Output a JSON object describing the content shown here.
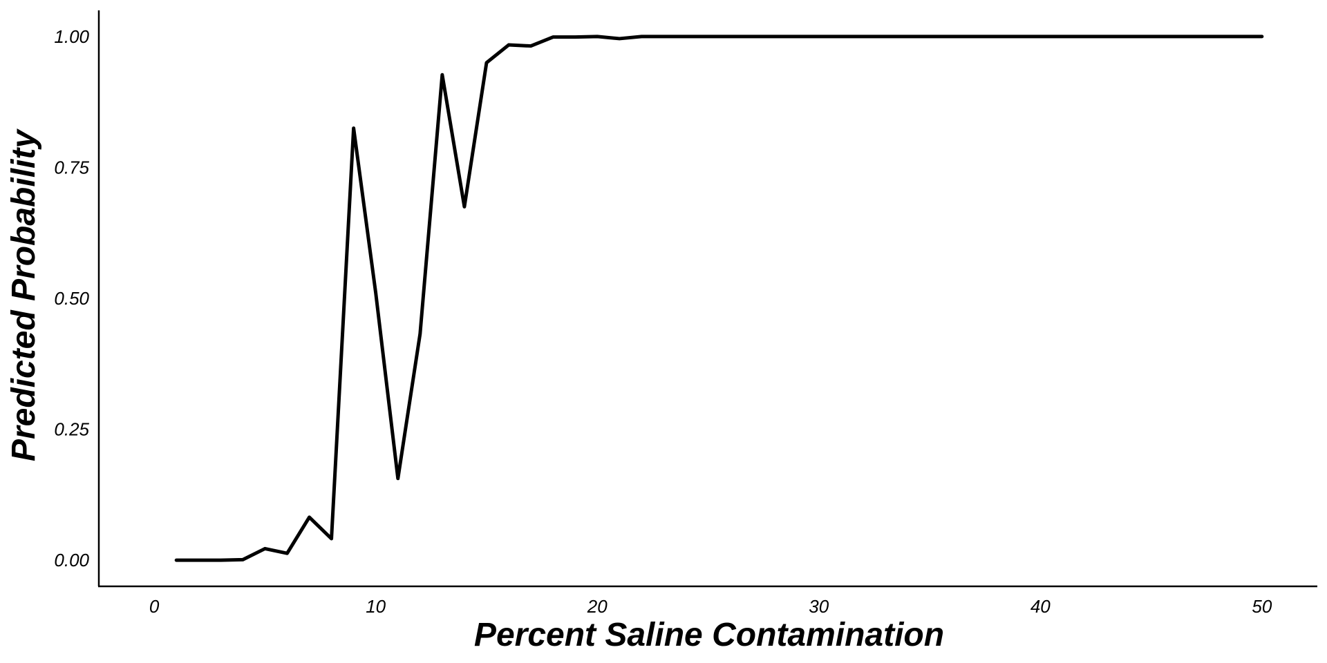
{
  "chart_data": {
    "type": "line",
    "title": "",
    "xlabel": "Percent Saline Contamination",
    "ylabel": "Predicted Probability",
    "xlim": [
      -2.5,
      52.5
    ],
    "ylim": [
      -0.05,
      1.05
    ],
    "xticks": [
      0,
      10,
      20,
      30,
      40,
      50
    ],
    "xtick_labels": [
      "0",
      "10",
      "20",
      "30",
      "40",
      "50"
    ],
    "yticks": [
      0,
      0.25,
      0.5,
      0.75,
      1.0
    ],
    "ytick_labels": [
      "0.00",
      "0.25",
      "0.50",
      "0.75",
      "1.00"
    ],
    "grid": false,
    "legend": "none",
    "series": [
      {
        "color": "#000000",
        "x": [
          1,
          2,
          3,
          4,
          5,
          6,
          7,
          8,
          9,
          10,
          11,
          12,
          13,
          14,
          15,
          16,
          17,
          18,
          19,
          20,
          21,
          22,
          23,
          24,
          25,
          26,
          27,
          28,
          29,
          30,
          31,
          32,
          33,
          34,
          35,
          36,
          37,
          38,
          39,
          40,
          41,
          42,
          43,
          44,
          45,
          46,
          47,
          48,
          49,
          50
        ],
        "y": [
          0.0,
          0.0,
          0.0,
          0.001,
          0.022,
          0.013,
          0.082,
          0.041,
          0.825,
          0.51,
          0.156,
          0.432,
          0.927,
          0.675,
          0.95,
          0.984,
          0.982,
          0.999,
          0.999,
          1.0,
          0.996,
          1.0,
          1.0,
          1.0,
          1.0,
          1.0,
          1.0,
          1.0,
          1.0,
          1.0,
          1.0,
          1.0,
          1.0,
          1.0,
          1.0,
          1.0,
          1.0,
          1.0,
          1.0,
          1.0,
          1.0,
          1.0,
          1.0,
          1.0,
          1.0,
          1.0,
          1.0,
          1.0,
          1.0,
          1.0
        ]
      }
    ]
  }
}
